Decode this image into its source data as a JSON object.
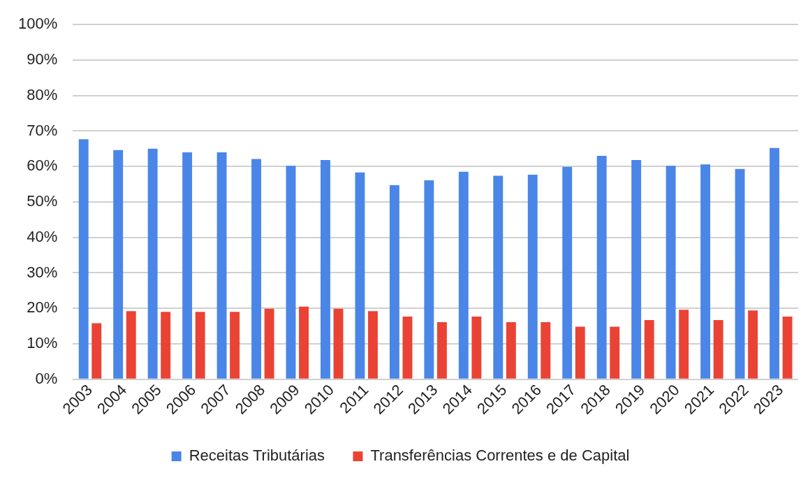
{
  "chart_data": {
    "type": "bar",
    "categories": [
      "2003",
      "2004",
      "2005",
      "2006",
      "2007",
      "2008",
      "2009",
      "2010",
      "2011",
      "2012",
      "2013",
      "2014",
      "2015",
      "2016",
      "2017",
      "2018",
      "2019",
      "2020",
      "2021",
      "2022",
      "2023"
    ],
    "series": [
      {
        "name": "Receitas Tributárias",
        "color": "#4a86e8",
        "values": [
          67.7,
          64.6,
          65,
          64,
          64,
          62.1,
          60.2,
          61.8,
          58.3,
          54.7,
          56.1,
          58.5,
          57.4,
          57.7,
          59.9,
          63,
          61.8,
          60.2,
          60.6,
          59.3,
          65.2
        ]
      },
      {
        "name": "Transferências Correntes e de Capital",
        "color": "#ea4335",
        "values": [
          15.8,
          19.2,
          19,
          19,
          19,
          19.9,
          20.5,
          19.9,
          19.2,
          17.7,
          16.1,
          17.7,
          16.1,
          16.1,
          14.8,
          14.8,
          16.7,
          19.6,
          16.7,
          19.4,
          17.7
        ]
      }
    ],
    "ylim": [
      0,
      100
    ],
    "yticks": [
      {
        "value": 0,
        "label": "0%"
      },
      {
        "value": 10,
        "label": "10%"
      },
      {
        "value": 20,
        "label": "20%"
      },
      {
        "value": 30,
        "label": "30%"
      },
      {
        "value": 40,
        "label": "40%"
      },
      {
        "value": 50,
        "label": "50%"
      },
      {
        "value": 60,
        "label": "60%"
      },
      {
        "value": 70,
        "label": "70%"
      },
      {
        "value": 80,
        "label": "80%"
      },
      {
        "value": 90,
        "label": "90%"
      },
      {
        "value": 100,
        "label": "100%"
      }
    ],
    "grid": "y",
    "legend": "bottom"
  }
}
